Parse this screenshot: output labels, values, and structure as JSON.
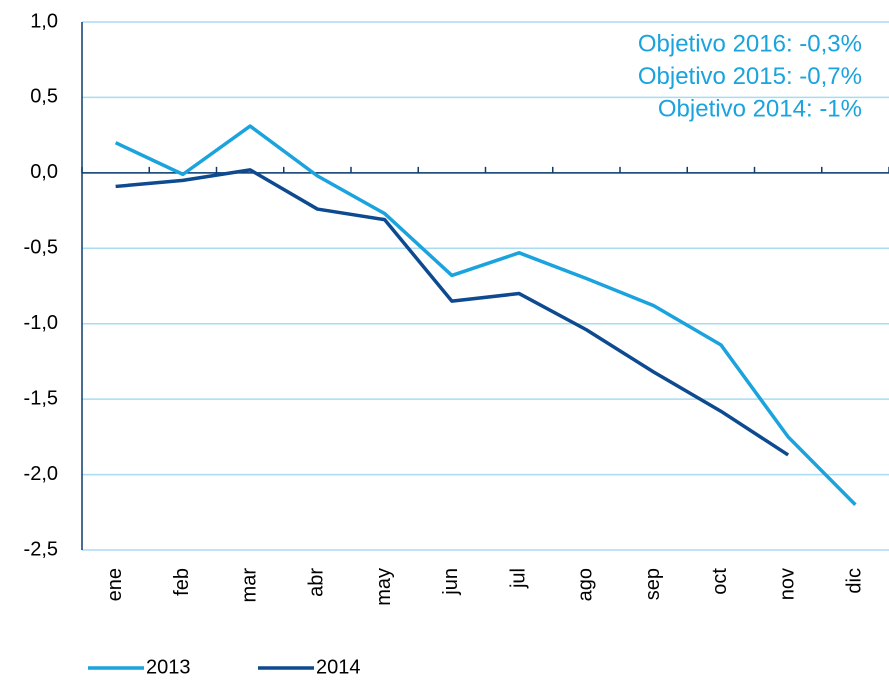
{
  "chart_data": {
    "type": "line",
    "categories": [
      "ene",
      "feb",
      "mar",
      "abr",
      "may",
      "jun",
      "jul",
      "ago",
      "sep",
      "oct",
      "nov",
      "dic"
    ],
    "series": [
      {
        "name": "2013",
        "color": "#1aa3dc",
        "values": [
          0.2,
          -0.01,
          0.31,
          -0.02,
          -0.27,
          -0.68,
          -0.53,
          -0.7,
          -0.88,
          -1.14,
          -1.75,
          -2.2
        ]
      },
      {
        "name": "2014",
        "color": "#0d4a8f",
        "values": [
          -0.09,
          -0.05,
          0.02,
          -0.24,
          -0.31,
          -0.85,
          -0.8,
          -1.04,
          -1.32,
          -1.58,
          -1.87,
          null
        ]
      }
    ],
    "ylim": [
      -2.5,
      1.0
    ],
    "yticks": [
      {
        "value": 1.0,
        "label": "1,0"
      },
      {
        "value": 0.5,
        "label": "0,5"
      },
      {
        "value": 0,
        "label": "0,0"
      },
      {
        "value": -0.5,
        "label": "-0,5"
      },
      {
        "value": -1.0,
        "label": "-1,0"
      },
      {
        "value": -1.5,
        "label": "-1,5"
      },
      {
        "value": -2.0,
        "label": "-2,0"
      },
      {
        "value": -2.5,
        "label": "-2,5"
      }
    ],
    "grid": true,
    "annotations": [
      "Objetivo 2016: -0,3%",
      "Objetivo 2015: -0,7%",
      "Objetivo 2014: -1%"
    ]
  }
}
